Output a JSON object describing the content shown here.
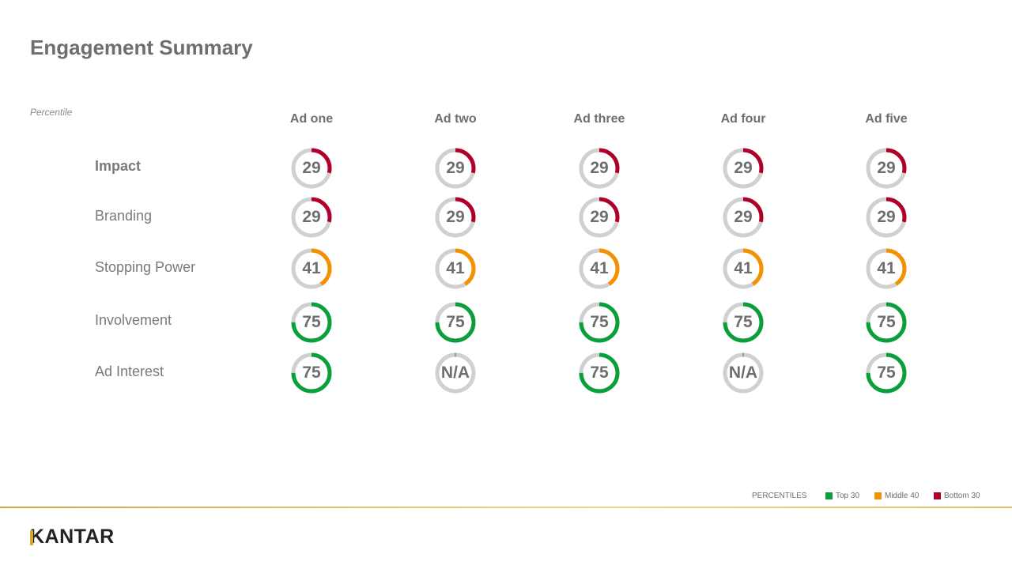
{
  "title": "Engagement Summary",
  "subtitle": "Percentile",
  "colors": {
    "top": "#0a9f3b",
    "middle": "#f29200",
    "bottom": "#b0002a",
    "track": "#d0d0d0"
  },
  "legend": {
    "label": "PERCENTILES",
    "items": [
      {
        "label": "Top 30",
        "color": "#0a9f3b"
      },
      {
        "label": "Middle 40",
        "color": "#f29200"
      },
      {
        "label": "Bottom 30",
        "color": "#b0002a"
      }
    ]
  },
  "logo": "KANTAR",
  "chart_data": {
    "type": "table",
    "columns": [
      "Ad one",
      "Ad two",
      "Ad three",
      "Ad four",
      "Ad five"
    ],
    "rows": [
      {
        "label": "Impact",
        "bold": true,
        "values": [
          "29",
          "29",
          "29",
          "29",
          "29"
        ]
      },
      {
        "label": "Branding",
        "bold": false,
        "values": [
          "29",
          "29",
          "29",
          "29",
          "29"
        ]
      },
      {
        "label": "Stopping Power",
        "bold": false,
        "values": [
          "41",
          "41",
          "41",
          "41",
          "41"
        ]
      },
      {
        "label": "Involvement",
        "bold": false,
        "values": [
          "75",
          "75",
          "75",
          "75",
          "75"
        ]
      },
      {
        "label": "Ad Interest",
        "bold": false,
        "values": [
          "75",
          "N/A",
          "75",
          "N/A",
          "75"
        ]
      }
    ],
    "bands": [
      {
        "name": "Bottom 30",
        "from": 0,
        "to": 30
      },
      {
        "name": "Middle 40",
        "from": 30,
        "to": 70
      },
      {
        "name": "Top 30",
        "from": 70,
        "to": 100
      }
    ]
  }
}
